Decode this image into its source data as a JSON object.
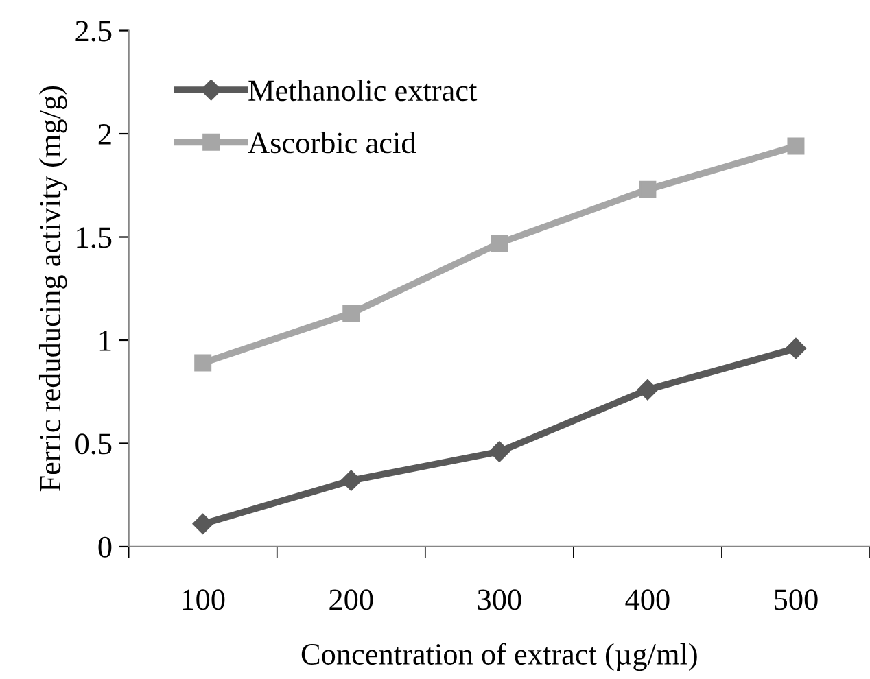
{
  "chart_data": {
    "type": "line",
    "xlabel": "Concentration of extract (µg/ml)",
    "ylabel": "Ferric reduducing activity (mg/g)",
    "categories": [
      "100",
      "200",
      "300",
      "400",
      "500"
    ],
    "series": [
      {
        "name": "Methanolic extract",
        "color": "#595959",
        "marker": "diamond",
        "values": [
          0.11,
          0.32,
          0.46,
          0.76,
          0.96
        ]
      },
      {
        "name": "Ascorbic acid",
        "color": "#a6a6a6",
        "marker": "square",
        "values": [
          0.89,
          1.13,
          1.47,
          1.73,
          1.94
        ]
      }
    ],
    "ylim": [
      0,
      2.5
    ],
    "yticks": [
      0,
      0.5,
      1,
      1.5,
      2,
      2.5
    ],
    "grid": false,
    "legend": "top left",
    "line_style": "solid"
  }
}
